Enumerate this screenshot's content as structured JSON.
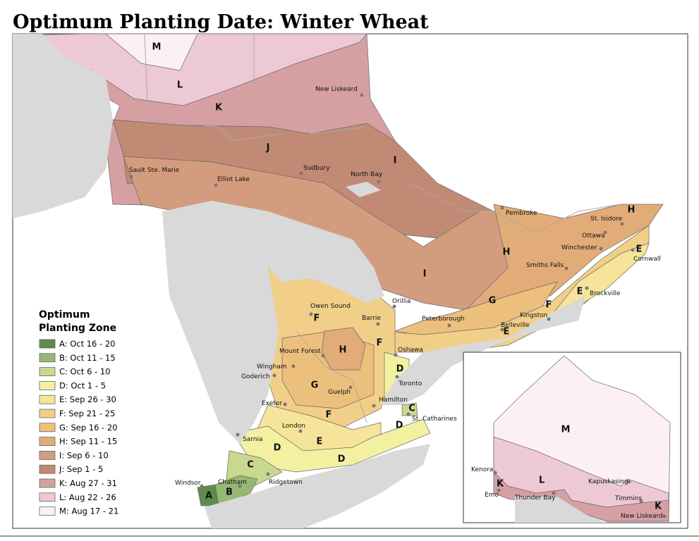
{
  "title": "Optimum Planting Date: Winter Wheat",
  "legend": {
    "title": [
      "Optimum",
      "Planting Zone"
    ],
    "items": [
      {
        "label": "A: Oct 16 - 20",
        "color": "#5e8c4c"
      },
      {
        "label": "B: Oct 11 - 15",
        "color": "#96b875"
      },
      {
        "label": "C: Oct 6 - 10",
        "color": "#c8d98f"
      },
      {
        "label": "D: Oct 1 - 5",
        "color": "#f4f0a2"
      },
      {
        "label": "E: Sep 26 - 30",
        "color": "#f6e49a"
      },
      {
        "label": "F: Sep 21 - 25",
        "color": "#f2cf88"
      },
      {
        "label": "G: Sep 16 - 20",
        "color": "#ecc07c"
      },
      {
        "label": "H: Sep 11 - 15",
        "color": "#e2ac78"
      },
      {
        "label": "I: Sep 6 - 10",
        "color": "#d49c7e"
      },
      {
        "label": "J: Sep 1 - 5",
        "color": "#c08a75"
      },
      {
        "label": "K: Aug 27 - 31",
        "color": "#d6a0a3"
      },
      {
        "label": "L:  Aug 22 - 26",
        "color": "#ecc9d4"
      },
      {
        "label": "M: Aug 17 - 21",
        "color": "#fcf0f6"
      }
    ]
  },
  "cities": [
    "Sault Ste. Marie",
    "Elliot Lake",
    "Sudbury",
    "North Bay",
    "New Liskeard",
    "Pembroke",
    "St. Isidore",
    "Ottawa",
    "Winchester",
    "Cornwall",
    "Smiths Falls",
    "Brockville",
    "Kingston",
    "Belleville",
    "Peterborough",
    "Orillia",
    "Barrie",
    "Owen Sound",
    "Oshawa",
    "Mount Forest",
    "Wingham",
    "Goderich",
    "Toronto",
    "Guelph",
    "Hamilton",
    "St. Catharines",
    "Exeter",
    "London",
    "Sarnia",
    "Windsor",
    "Chatham",
    "Ridgetown"
  ],
  "zone_labels": [
    "M",
    "L",
    "K",
    "J",
    "I",
    "I",
    "H",
    "H",
    "H",
    "G",
    "G",
    "F",
    "F",
    "F",
    "F",
    "E",
    "E",
    "E",
    "E",
    "D",
    "D",
    "D",
    "D",
    "C",
    "C",
    "B",
    "A"
  ],
  "inset": {
    "cities": [
      "Kenora",
      "Emo",
      "Thunder Bay",
      "Kapuskasing",
      "Timmins",
      "New Liskeard"
    ],
    "zone_labels": [
      "K",
      "L",
      "M",
      "K"
    ]
  }
}
